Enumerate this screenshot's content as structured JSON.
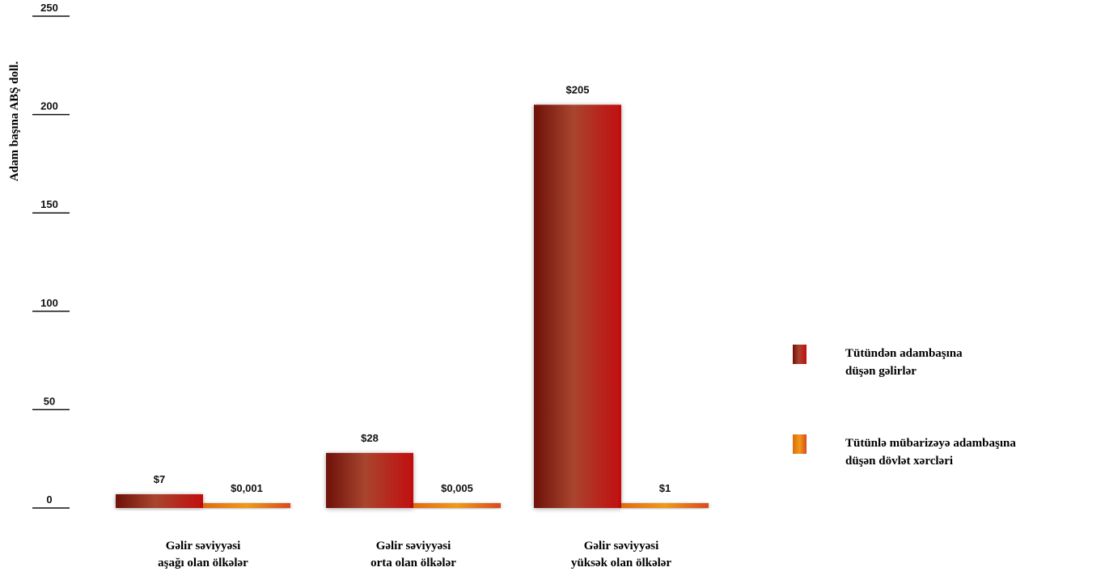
{
  "chart_data": {
    "type": "bar",
    "ylabel": "Adam başına ABŞ doll.",
    "ylim": [
      0,
      250
    ],
    "yticks": [
      0,
      50,
      100,
      150,
      200,
      250
    ],
    "grid": false,
    "legend_position": "right",
    "categories": [
      [
        "Gəlir səviyyəsi",
        "aşağı olan ölkələr"
      ],
      [
        "Gəlir səviyyəsi",
        "orta olan ölkələr"
      ],
      [
        "Gəlir səviyyəsi",
        "yüksək olan ölkələr"
      ]
    ],
    "series": [
      {
        "name": [
          "Tütündən adambaşına",
          "düşən gəlirlər"
        ],
        "values": [
          7,
          28,
          205
        ],
        "labels": [
          "$7",
          "$28",
          "$205"
        ],
        "color": "#9e1a12"
      },
      {
        "name": [
          "Tütünlə mübarizəyə adambaşına",
          "düşən dövlət xərcləri"
        ],
        "values": [
          0.001,
          0.005,
          1
        ],
        "labels": [
          "$0,001",
          "$0,005",
          "$1"
        ],
        "color": "#e8720c"
      }
    ]
  }
}
